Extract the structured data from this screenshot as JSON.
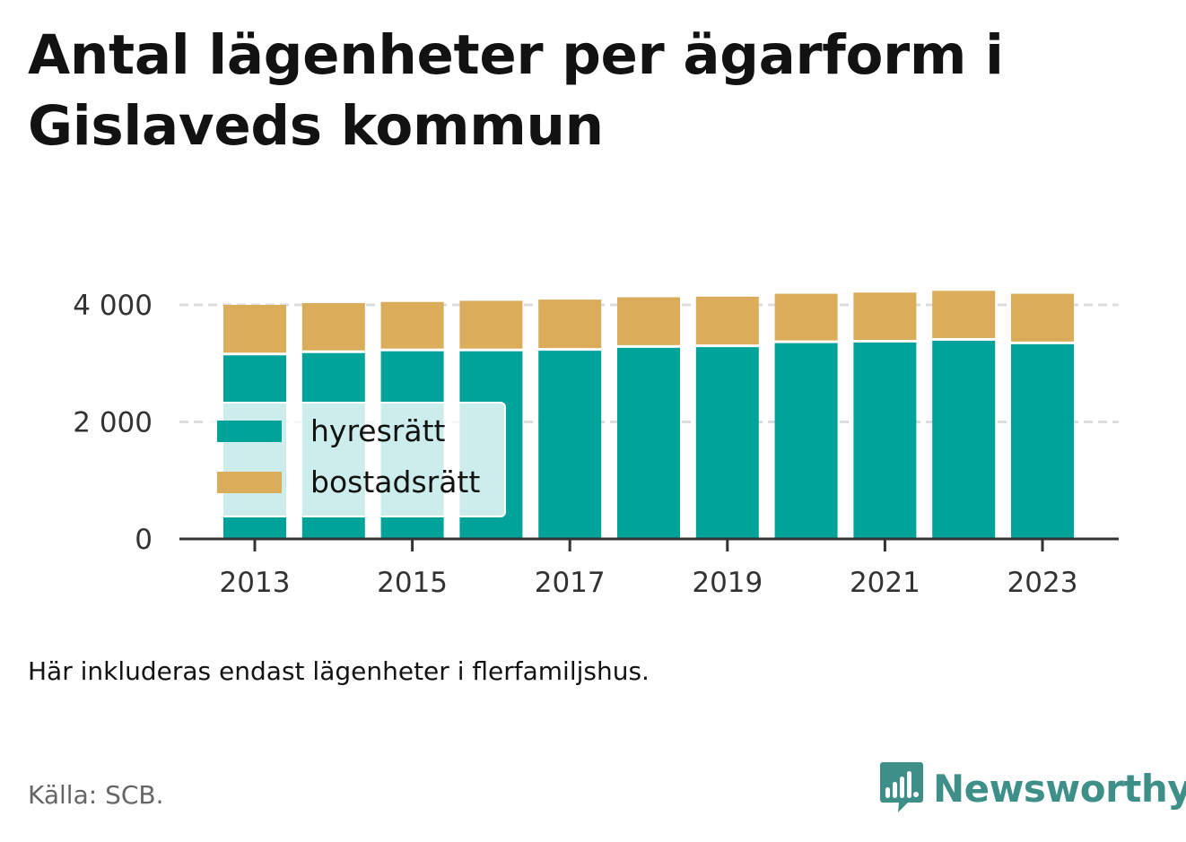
{
  "title": "Antal lägenheter per ägarform i Gislaveds kommun",
  "note": "Här inkluderas endast lägenheter i flerfamiljshus.",
  "source": "Källa: SCB.",
  "brand": {
    "name": "Newsworthy",
    "icon": "newsworthy-logo-icon",
    "color": "#3f8f89"
  },
  "chart_data": {
    "type": "bar",
    "stacked": true,
    "x": [
      2013,
      2014,
      2015,
      2016,
      2017,
      2018,
      2019,
      2020,
      2021,
      2022,
      2023
    ],
    "x_tick_labels": [
      "2013",
      "2015",
      "2017",
      "2019",
      "2021",
      "2023"
    ],
    "y_tick_labels": [
      "0",
      "2 000",
      "4 000"
    ],
    "y_ticks": [
      0,
      2000,
      4000
    ],
    "ylim": [
      0,
      4300
    ],
    "grid": "horizontal",
    "legend_position": "bottom-left",
    "series": [
      {
        "name": "hyresrätt",
        "color": "#00a39a",
        "values": [
          3160,
          3200,
          3230,
          3230,
          3240,
          3290,
          3300,
          3370,
          3380,
          3410,
          3350
        ]
      },
      {
        "name": "bostadsrätt",
        "color": "#dbac5a",
        "values": [
          840,
          830,
          820,
          840,
          850,
          840,
          840,
          820,
          830,
          830,
          840
        ]
      }
    ]
  }
}
